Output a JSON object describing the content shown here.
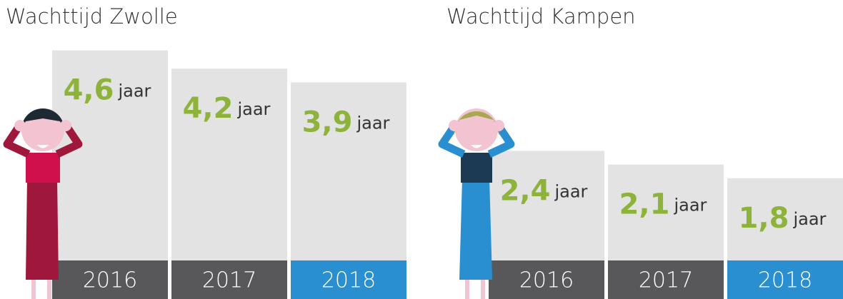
{
  "chart_data": [
    {
      "type": "bar",
      "title": "Wachttijd Zwolle",
      "unit": "jaar",
      "categories": [
        "2016",
        "2017",
        "2018"
      ],
      "values": [
        4.6,
        4.2,
        3.9
      ],
      "value_labels": [
        "4,6",
        "4,2",
        "3,9"
      ],
      "color": "#e3e3e3",
      "category_colors": [
        "#58585a",
        "#58585a",
        "#2a8fd0"
      ],
      "label_color": "#8db33a"
    },
    {
      "type": "bar",
      "title": "Wachttijd Kampen",
      "unit": "jaar",
      "categories": [
        "2016",
        "2017",
        "2018"
      ],
      "values": [
        2.4,
        2.1,
        1.8
      ],
      "value_labels": [
        "2,4",
        "2,1",
        "1,8"
      ],
      "color": "#e3e3e3",
      "category_colors": [
        "#58585a",
        "#58585a",
        "#2a8fd0"
      ],
      "label_color": "#8db33a"
    }
  ]
}
